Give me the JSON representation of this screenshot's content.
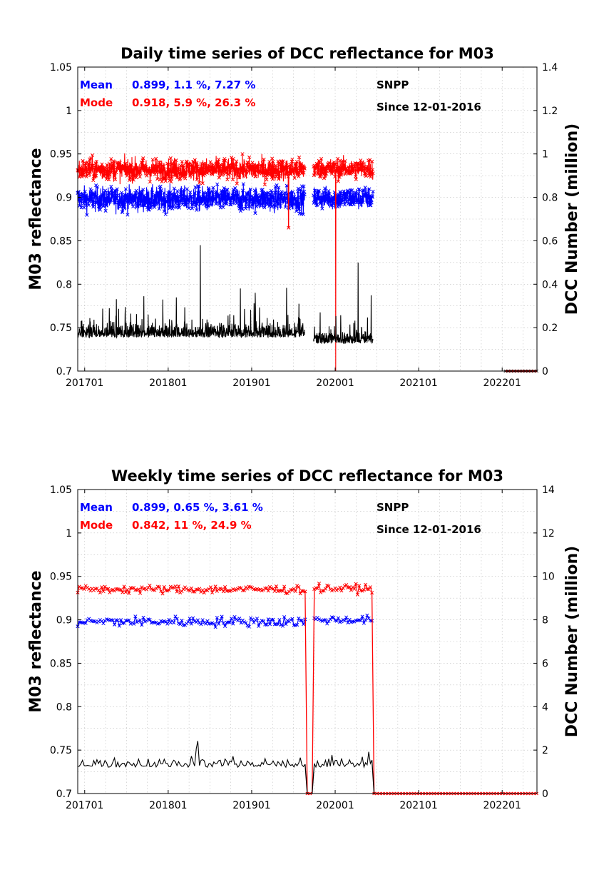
{
  "chart_data": [
    {
      "type": "line",
      "title": "Daily time series of DCC reflectance for M03",
      "ylabel": "M03 reflectance",
      "y2label": "DCC Number (million)",
      "x_range": [
        "2016-12",
        "2022-06"
      ],
      "x_ticks": [
        "201701",
        "201801",
        "201901",
        "202001",
        "202101",
        "202201"
      ],
      "ylim": [
        0.7,
        1.05
      ],
      "y_ticks": [
        "0.7",
        "0.75",
        "0.8",
        "0.85",
        "0.9",
        "0.95",
        "1",
        "1.05"
      ],
      "y2lim": [
        0,
        1.4
      ],
      "y2_ticks": [
        "0",
        "0.2",
        "0.4",
        "0.6",
        "0.8",
        "1",
        "1.2",
        "1.4"
      ],
      "grid": true,
      "annotations": {
        "satellite": "SNPP",
        "since": "Since 12-01-2016",
        "mean_label": "Mean",
        "mean_stats": "0.899, 1.1 %, 7.27 %",
        "mode_label": "Mode",
        "mode_stats": "0.918, 5.9 %, 26.3 %"
      },
      "series": [
        {
          "name": "Mean",
          "color": "#0000ff",
          "axis": "left",
          "marker": "x",
          "segments": [
            {
              "start": "2016-12-01",
              "end": "2019-08-20",
              "level": 0.898,
              "noise": 0.012
            },
            {
              "start": "2019-09-28",
              "end": "2020-06-15",
              "level": 0.899,
              "noise": 0.011
            }
          ]
        },
        {
          "name": "Mode",
          "color": "#ff0000",
          "axis": "left",
          "marker": "x",
          "segments": [
            {
              "start": "2016-12-01",
              "end": "2019-08-20",
              "level": 0.932,
              "noise": 0.011
            },
            {
              "start": "2019-09-28",
              "end": "2020-06-15",
              "level": 0.933,
              "noise": 0.01
            }
          ],
          "drops": [
            {
              "date": "2019-06-10",
              "value": 0.865
            },
            {
              "date": "2020-01-03",
              "value": 0.7
            }
          ],
          "flat": {
            "start": "2022-01-15",
            "end": "2022-06-01",
            "value": 0.7
          }
        },
        {
          "name": "DCC Number",
          "color": "#000000",
          "axis": "right",
          "segments": [
            {
              "start": "2016-12-01",
              "end": "2019-08-20",
              "level": 0.17,
              "noise": 0.05
            },
            {
              "start": "2019-09-28",
              "end": "2020-06-15",
              "level": 0.14,
              "noise": 0.045
            }
          ],
          "peaks": [
            {
              "date": "2018-05-20",
              "value": 0.58
            },
            {
              "date": "2020-04-10",
              "value": 0.5
            }
          ]
        }
      ]
    },
    {
      "type": "line",
      "title": "Weekly time series of DCC reflectance for M03",
      "ylabel": "M03 reflectance",
      "y2label": "DCC Number (million)",
      "x_range": [
        "2016-12",
        "2022-06"
      ],
      "x_ticks": [
        "201701",
        "201801",
        "201901",
        "202001",
        "202101",
        "202201"
      ],
      "ylim": [
        0.7,
        1.05
      ],
      "y_ticks": [
        "0.7",
        "0.75",
        "0.8",
        "0.85",
        "0.9",
        "0.95",
        "1",
        "1.05"
      ],
      "y2lim": [
        0,
        14
      ],
      "y2_ticks": [
        "0",
        "2",
        "4",
        "6",
        "8",
        "10",
        "12",
        "14"
      ],
      "grid": true,
      "annotations": {
        "satellite": "SNPP",
        "since": "Since 12-01-2016",
        "mean_label": "Mean",
        "mean_stats": "0.899, 0.65 %, 3.61 %",
        "mode_label": "Mode",
        "mode_stats": "0.842, 11 %, 24.9 %"
      },
      "series": [
        {
          "name": "Mean",
          "color": "#0000ff",
          "axis": "left",
          "marker": "x",
          "segments": [
            {
              "start": "2016-12-01",
              "end": "2019-08-25",
              "level": 0.898,
              "noise": 0.005
            },
            {
              "start": "2019-10-01",
              "end": "2020-06-10",
              "level": 0.9,
              "noise": 0.004
            }
          ]
        },
        {
          "name": "Mode",
          "color": "#ff0000",
          "axis": "left",
          "marker": "x",
          "segments": [
            {
              "start": "2016-12-01",
              "end": "2019-08-25",
              "level": 0.935,
              "noise": 0.004
            },
            {
              "start": "2019-10-01",
              "end": "2020-06-10",
              "level": 0.936,
              "noise": 0.004
            }
          ],
          "zero_after_gap": true,
          "zero_value": 0.7,
          "zero_end": "2022-06-01"
        },
        {
          "name": "DCC Number",
          "color": "#000000",
          "axis": "right",
          "segments": [
            {
              "start": "2016-12-01",
              "end": "2019-08-25",
              "level": 1.3,
              "noise": 0.3
            },
            {
              "start": "2019-10-01",
              "end": "2020-06-10",
              "level": 1.3,
              "noise": 0.3
            }
          ],
          "zero_after_gap": true,
          "zero_value": 0
        }
      ]
    }
  ]
}
